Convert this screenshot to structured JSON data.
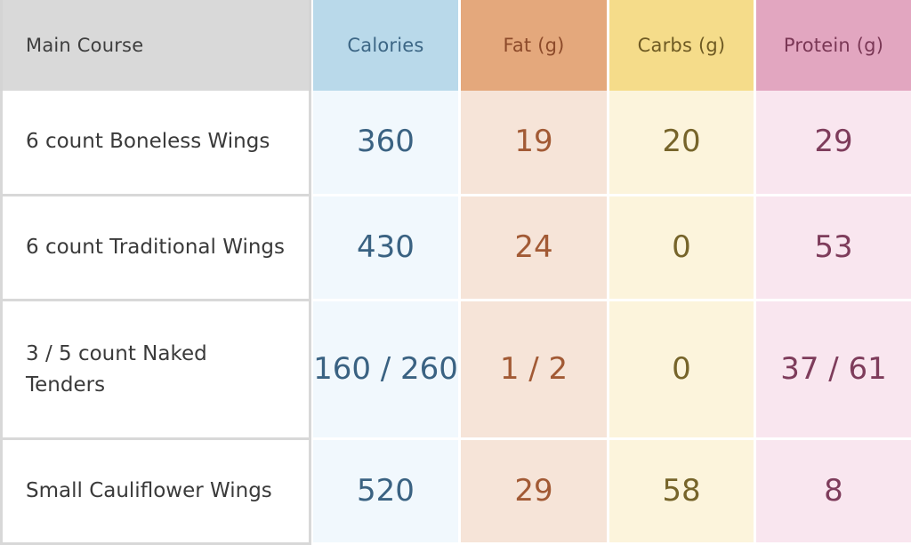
{
  "header": {
    "name": "Main Course",
    "calories": "Calories",
    "fat": "Fat (g)",
    "carbs": "Carbs (g)",
    "protein": "Protein (g)"
  },
  "colors": {
    "calories_header": "#b9d9ea",
    "fat_header": "#e4a87c",
    "carbs_header": "#f5dc8a",
    "protein_header": "#e2a6c0",
    "name_header": "#d9d9d9"
  },
  "rows": [
    {
      "name": "6 count Boneless Wings",
      "calories": "360",
      "fat": "19",
      "carbs": "20",
      "protein": "29"
    },
    {
      "name": "6 count Traditional Wings",
      "calories": "430",
      "fat": "24",
      "carbs": "0",
      "protein": "53"
    },
    {
      "name": "3 / 5 count Naked Tenders",
      "calories": "160 / 260",
      "fat": "1 / 2",
      "carbs": "0",
      "protein": "37 / 61"
    },
    {
      "name": "Small Cauliflower Wings",
      "calories": "520",
      "fat": "29",
      "carbs": "58",
      "protein": "8"
    }
  ]
}
